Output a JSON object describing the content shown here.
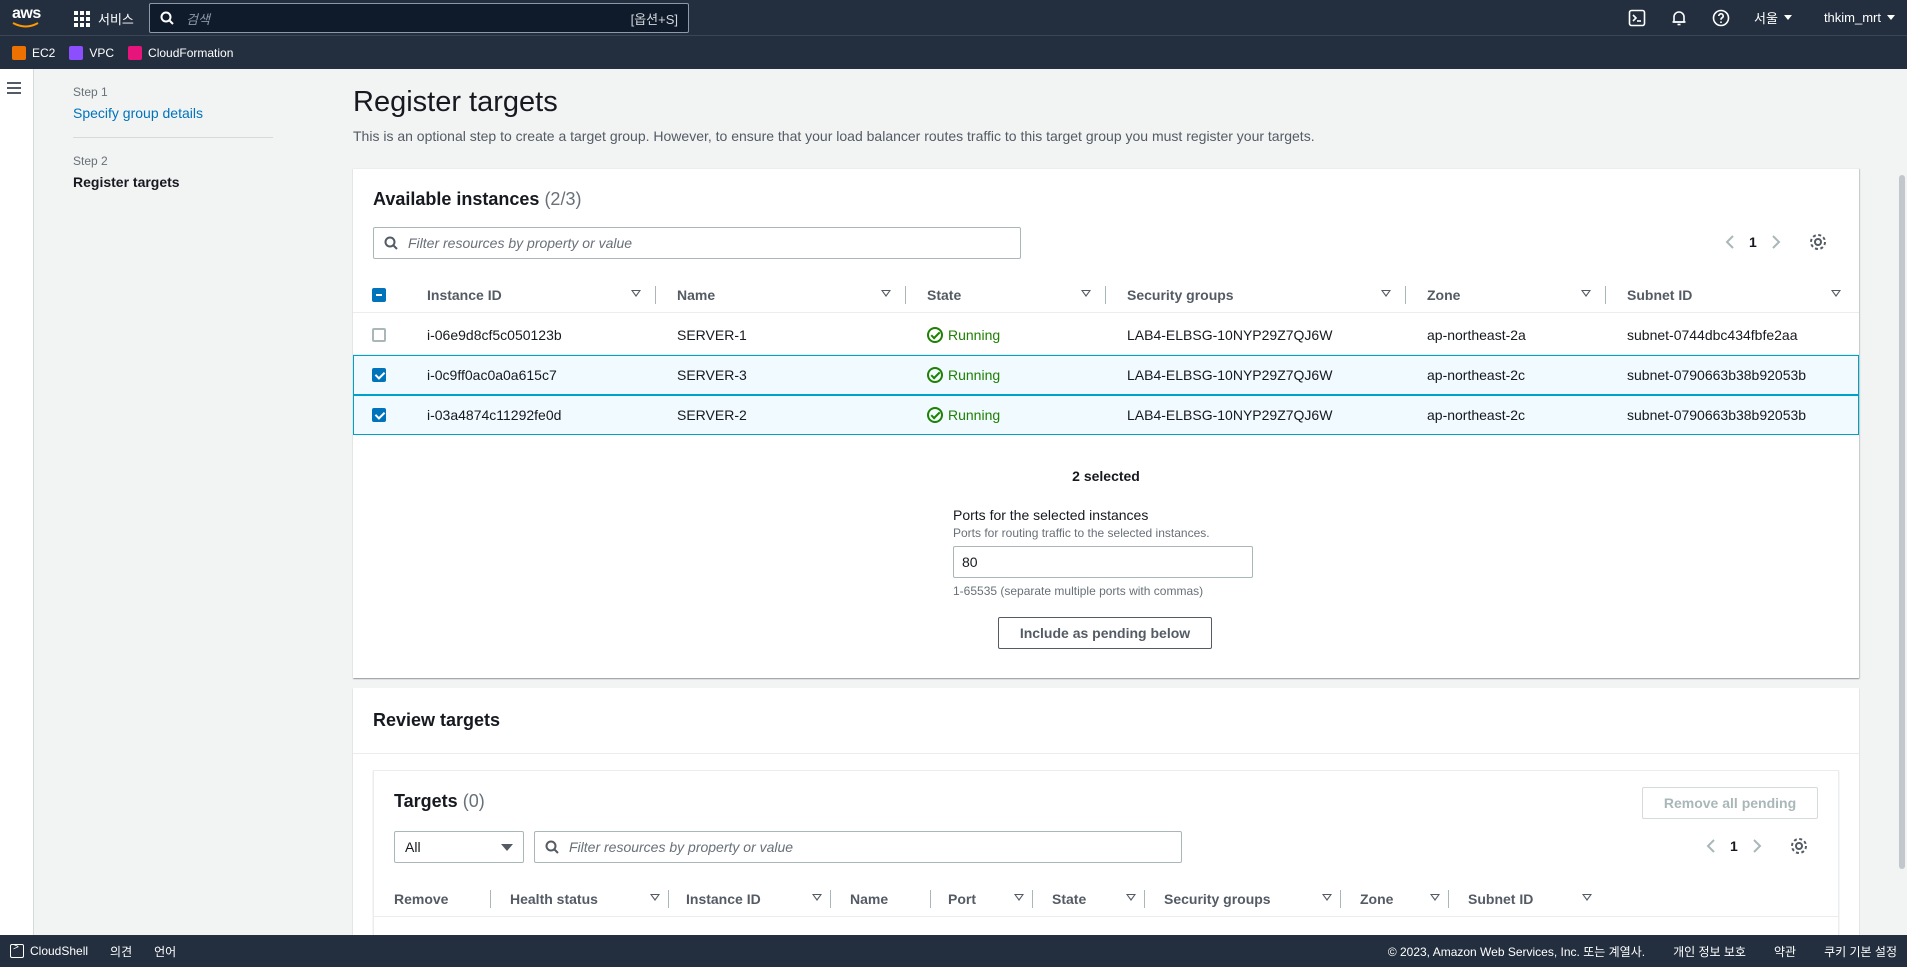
{
  "topnav": {
    "logo": "aws",
    "services_label": "서비스",
    "search_placeholder": "검색",
    "search_shortcut": "[옵션+S]",
    "region": "서울",
    "user": "thkim_mrt",
    "icons": [
      "cloudshell-icon",
      "bell-icon",
      "help-icon"
    ]
  },
  "favorites": [
    {
      "label": "EC2",
      "color": "#ed7100"
    },
    {
      "label": "VPC",
      "color": "#8c4fff"
    },
    {
      "label": "CloudFormation",
      "color": "#e7157b"
    }
  ],
  "steps": [
    {
      "step": "Step 1",
      "label": "Specify group details"
    },
    {
      "step": "Step 2",
      "label": "Register targets"
    }
  ],
  "page": {
    "title": "Register targets",
    "description": "This is an optional step to create a target group. However, to ensure that your load balancer routes traffic to this target group you must register your targets."
  },
  "available": {
    "title": "Available instances",
    "count": "(2/3)",
    "filter_placeholder": "Filter resources by property or value",
    "page": "1",
    "columns": [
      "Instance ID",
      "Name",
      "State",
      "Security groups",
      "Zone",
      "Subnet ID"
    ],
    "rows": [
      {
        "id": "i-06e9d8cf5c050123b",
        "name": "SERVER-1",
        "state": "Running",
        "sg": "LAB4-ELBSG-10NYP29Z7QJ6W",
        "zone": "ap-northeast-2a",
        "subnet": "subnet-0744dbc434fbfe2aa",
        "selected": false
      },
      {
        "id": "i-0c9ff0ac0a0a615c7",
        "name": "SERVER-3",
        "state": "Running",
        "sg": "LAB4-ELBSG-10NYP29Z7QJ6W",
        "zone": "ap-northeast-2c",
        "subnet": "subnet-0790663b38b92053b",
        "selected": true
      },
      {
        "id": "i-03a4874c11292fe0d",
        "name": "SERVER-2",
        "state": "Running",
        "sg": "LAB4-ELBSG-10NYP29Z7QJ6W",
        "zone": "ap-northeast-2c",
        "subnet": "subnet-0790663b38b92053b",
        "selected": true
      }
    ],
    "selected_text": "2 selected",
    "ports_label": "Ports for the selected instances",
    "ports_desc": "Ports for routing traffic to the selected instances.",
    "ports_value": "80",
    "ports_hint": "1-65535 (separate multiple ports with commas)",
    "include_button": "Include as pending below"
  },
  "review": {
    "title": "Review targets",
    "targets_title": "Targets",
    "targets_count": "(0)",
    "remove_all": "Remove all pending",
    "filter_select": "All",
    "filter_placeholder": "Filter resources by property or value",
    "page": "1",
    "columns": [
      "Remove",
      "Health status",
      "Instance ID",
      "Name",
      "Port",
      "State",
      "Security groups",
      "Zone",
      "Subnet ID"
    ]
  },
  "footer": {
    "cloudshell": "CloudShell",
    "feedback": "의견",
    "language": "언어",
    "copyright": "© 2023, Amazon Web Services, Inc. 또는 계열사.",
    "privacy": "개인 정보 보호",
    "terms": "약관",
    "cookies": "쿠키 기본 설정"
  }
}
